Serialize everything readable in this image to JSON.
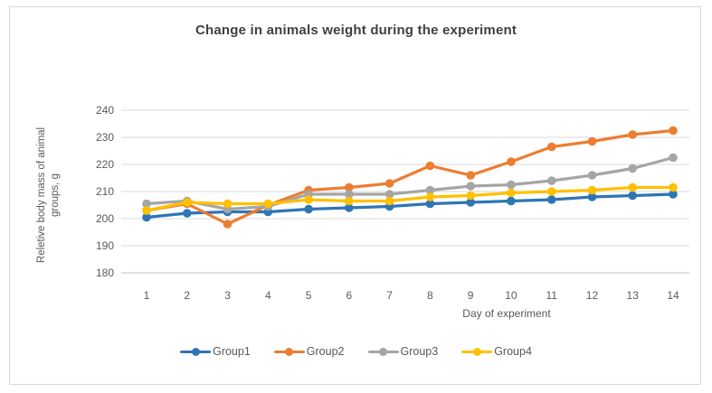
{
  "chart_data": {
    "type": "line",
    "title": "Change in animals weight during the experiment",
    "xlabel": "Day of experiment",
    "ylabel_lines": [
      "Reletive body mass of animal",
      "groups, g"
    ],
    "ylabel_full": "Reletive body mass of animal groups, g",
    "categories": [
      "1",
      "2",
      "3",
      "4",
      "5",
      "6",
      "7",
      "8",
      "9",
      "10",
      "11",
      "12",
      "13",
      "14"
    ],
    "y_ticks": [
      240,
      230,
      220,
      210,
      200,
      190,
      180
    ],
    "ylim": [
      180,
      240
    ],
    "grid": true,
    "legend_position": "bottom",
    "series": [
      {
        "name": "Group1",
        "color": "#2E75B6",
        "values": [
          200.5,
          202,
          202.5,
          202.5,
          203.5,
          204,
          204.5,
          205.5,
          206,
          206.5,
          207,
          208,
          208.5,
          209
        ]
      },
      {
        "name": "Group2",
        "color": "#ED7D31",
        "values": [
          203,
          205.5,
          198,
          205,
          210.5,
          211.5,
          213,
          219.5,
          216,
          221,
          226.5,
          228.5,
          231,
          232.5
        ]
      },
      {
        "name": "Group3",
        "color": "#A5A5A5",
        "values": [
          205.5,
          206.5,
          203.5,
          204.5,
          209,
          209,
          209,
          210.5,
          212,
          212.5,
          214,
          216,
          218.5,
          222.5
        ]
      },
      {
        "name": "Group4",
        "color": "#FFC000",
        "values": [
          203,
          206,
          205.5,
          205.5,
          207,
          206.5,
          206.5,
          208,
          208.5,
          209.5,
          210,
          210.5,
          211.5,
          211.5
        ]
      }
    ]
  },
  "style": {
    "gridline_color": "#D9D9D9",
    "axis_line_color": "#BFBFBF",
    "tick_text_color": "#595959",
    "title_color": "#404040",
    "border_color": "#D9D9D9",
    "background": "#FFFFFF"
  }
}
